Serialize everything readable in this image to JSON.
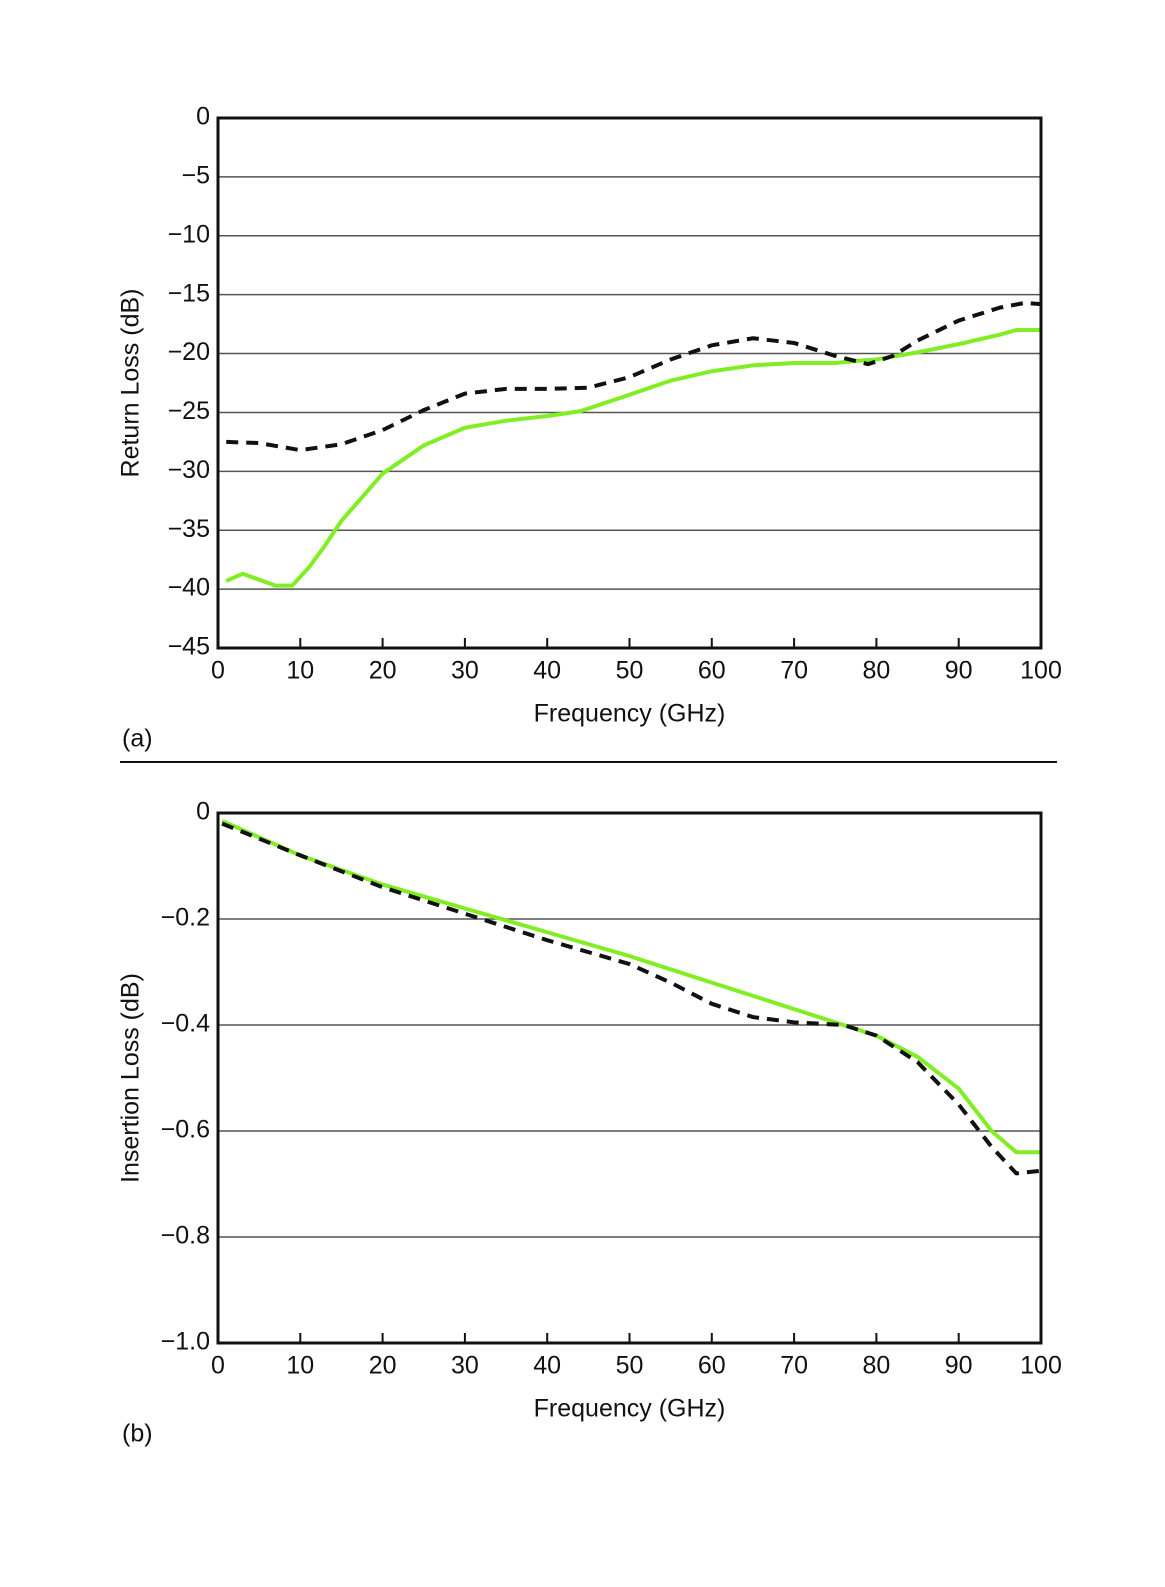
{
  "chart_data": [
    {
      "type": "line",
      "panel_label": "(a)",
      "ylabel": "Return Loss (dB)",
      "xlabel": "Frequency (GHz)",
      "xlim": [
        0,
        100
      ],
      "xticks": [
        0,
        10,
        20,
        30,
        40,
        50,
        60,
        70,
        80,
        90,
        100
      ],
      "ylim": [
        -45,
        0
      ],
      "yticks": [
        {
          "value": -45,
          "label": "−45"
        },
        {
          "value": -40,
          "label": "−40"
        },
        {
          "value": -35,
          "label": "−35"
        },
        {
          "value": -30,
          "label": "−30"
        },
        {
          "value": -25,
          "label": "−25"
        },
        {
          "value": -20,
          "label": "−20"
        },
        {
          "value": -15,
          "label": "−15"
        },
        {
          "value": -10,
          "label": "−10"
        },
        {
          "value": -5,
          "label": "−5"
        },
        0
      ],
      "grid": true,
      "series": [
        {
          "color": "#80ee22",
          "style": "solid",
          "x": [
            1,
            3,
            7,
            9,
            11,
            13,
            15,
            18,
            20,
            25,
            30,
            35,
            40,
            44,
            50,
            55,
            60,
            65,
            70,
            75,
            78,
            80,
            85,
            90,
            95,
            97,
            100
          ],
          "values": [
            -39.3,
            -38.7,
            -39.7,
            -39.7,
            -38.2,
            -36.3,
            -34.2,
            -31.8,
            -30.2,
            -27.8,
            -26.3,
            -25.7,
            -25.3,
            -24.9,
            -23.5,
            -22.3,
            -21.5,
            -21.0,
            -20.8,
            -20.8,
            -20.6,
            -20.5,
            -19.9,
            -19.2,
            -18.4,
            -18.0,
            -18.0
          ]
        },
        {
          "color": "#111111",
          "style": "dashed",
          "x": [
            1,
            5,
            10,
            15,
            20,
            25,
            30,
            35,
            40,
            45,
            50,
            55,
            60,
            65,
            70,
            75,
            79,
            82,
            85,
            90,
            95,
            98,
            100
          ],
          "values": [
            -27.5,
            -27.6,
            -28.2,
            -27.7,
            -26.5,
            -24.8,
            -23.4,
            -23.0,
            -23.0,
            -22.9,
            -22.0,
            -20.5,
            -19.3,
            -18.7,
            -19.1,
            -20.2,
            -20.9,
            -20.2,
            -18.9,
            -17.2,
            -16.1,
            -15.7,
            -15.8
          ]
        }
      ]
    },
    {
      "type": "line",
      "panel_label": "(b)",
      "ylabel": "Insertion Loss (dB)",
      "xlabel": "Frequency (GHz)",
      "xlim": [
        0,
        100
      ],
      "xticks": [
        0,
        10,
        20,
        30,
        40,
        50,
        60,
        70,
        80,
        90,
        100
      ],
      "ylim": [
        -1.0,
        0
      ],
      "yticks": [
        {
          "value": -1.0,
          "label": "−1.0"
        },
        {
          "value": -0.8,
          "label": "−0.8"
        },
        {
          "value": -0.6,
          "label": "−0.6"
        },
        {
          "value": -0.4,
          "label": "−0.4"
        },
        {
          "value": -0.2,
          "label": "−0.2"
        },
        0
      ],
      "grid": true,
      "series": [
        {
          "color": "#80ee22",
          "style": "solid",
          "x": [
            0.5,
            10,
            20,
            30,
            40,
            50,
            60,
            70,
            80,
            85,
            90,
            94,
            97,
            100
          ],
          "values": [
            -0.015,
            -0.08,
            -0.135,
            -0.18,
            -0.225,
            -0.27,
            -0.32,
            -0.37,
            -0.42,
            -0.46,
            -0.52,
            -0.6,
            -0.64,
            -0.64
          ]
        },
        {
          "color": "#111111",
          "style": "dashed",
          "x": [
            0.5,
            10,
            20,
            30,
            40,
            50,
            55,
            60,
            65,
            70,
            76,
            80,
            85,
            90,
            94,
            97,
            100
          ],
          "values": [
            -0.02,
            -0.08,
            -0.14,
            -0.19,
            -0.24,
            -0.285,
            -0.32,
            -0.36,
            -0.385,
            -0.395,
            -0.4,
            -0.42,
            -0.47,
            -0.55,
            -0.63,
            -0.68,
            -0.675
          ]
        }
      ]
    }
  ]
}
